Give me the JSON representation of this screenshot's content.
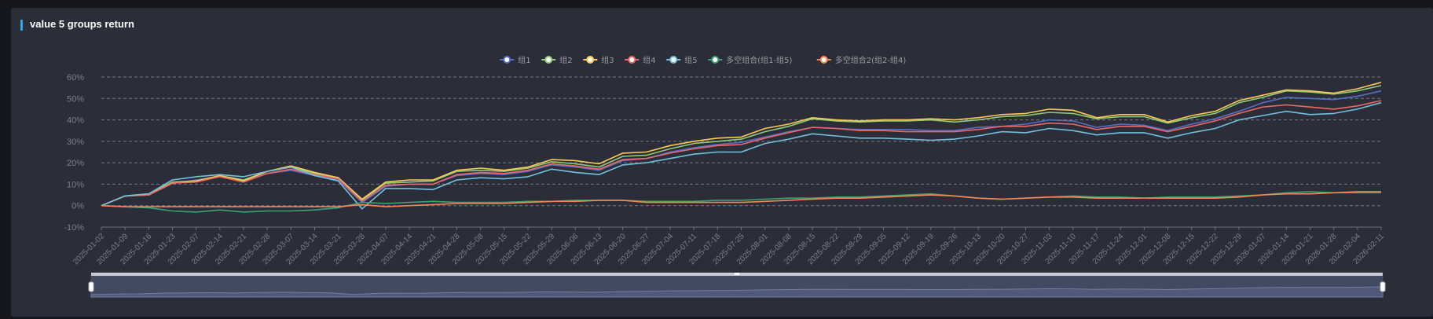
{
  "panel": {
    "title": "value 5 groups return"
  },
  "colors": {
    "background": "#2b2e38",
    "title_accent": "#2fa4e7",
    "grid": "#777a82",
    "axis_text": "#7c7f88"
  },
  "chart_data": {
    "type": "line",
    "title": "value 5 groups return",
    "xlabel": "",
    "ylabel": "",
    "ylim": [
      -10,
      60
    ],
    "y_ticks": [
      -10,
      0,
      10,
      20,
      30,
      40,
      50,
      60
    ],
    "y_tick_format": "percent",
    "grid": "horizontal dashed",
    "legend_position": "top-center",
    "x": [
      "2025-01-02",
      "2025-01-09",
      "2025-01-16",
      "2025-01-23",
      "2025-02-07",
      "2025-02-14",
      "2025-02-21",
      "2025-02-28",
      "2025-03-07",
      "2025-03-14",
      "2025-03-21",
      "2025-03-28",
      "2025-04-07",
      "2025-04-14",
      "2025-04-21",
      "2025-04-28",
      "2025-05-08",
      "2025-05-15",
      "2025-05-22",
      "2025-05-29",
      "2025-06-06",
      "2025-06-13",
      "2025-06-20",
      "2025-06-27",
      "2025-07-04",
      "2025-07-11",
      "2025-07-18",
      "2025-07-25",
      "2025-08-01",
      "2025-08-08",
      "2025-08-15",
      "2025-08-22",
      "2025-08-29",
      "2025-09-05",
      "2025-09-12",
      "2025-09-19",
      "2025-09-26",
      "2025-10-13",
      "2025-10-20",
      "2025-10-27",
      "2025-11-03",
      "2025-11-10",
      "2025-11-17",
      "2025-11-24",
      "2025-12-01",
      "2025-12-08",
      "2025-12-15",
      "2025-12-22",
      "2025-12-29",
      "2026-01-07",
      "2026-01-14",
      "2026-01-21",
      "2026-01-28",
      "2026-02-04",
      "2026-02-11"
    ],
    "series": [
      {
        "name": "组1",
        "color": "#5470c6",
        "values": [
          0,
          4.5,
          5.5,
          10.5,
          12,
          13.5,
          11.5,
          15,
          16.5,
          14,
          12,
          1.5,
          9,
          10,
          10,
          14,
          15,
          14.5,
          16,
          19,
          18,
          16.5,
          21,
          22,
          25,
          27,
          28.5,
          29.5,
          32,
          34.5,
          36.5,
          36,
          35.5,
          35.5,
          35.5,
          35,
          35,
          36.5,
          37,
          38,
          40,
          39.5,
          36.5,
          38,
          37.5,
          35,
          38,
          40.5,
          44,
          48,
          50.5,
          50,
          49.5,
          51,
          53.5
        ]
      },
      {
        "name": "组2",
        "color": "#91cc75",
        "values": [
          0,
          4.5,
          5.5,
          11,
          11.5,
          14,
          12,
          16,
          18,
          15,
          13,
          2.5,
          10.5,
          11,
          11.5,
          16,
          16.5,
          16,
          17.5,
          20.5,
          19.5,
          18,
          23,
          23.5,
          26.5,
          29,
          30,
          31,
          34.5,
          37,
          40.5,
          39.5,
          39,
          39.5,
          39.5,
          40,
          39,
          40,
          41.5,
          42,
          43.5,
          43,
          40.5,
          41.5,
          41.5,
          38.5,
          41,
          43,
          48,
          50.5,
          53.5,
          53,
          52,
          53.5,
          56
        ]
      },
      {
        "name": "组3",
        "color": "#fac858",
        "values": [
          0,
          4.5,
          5,
          10.5,
          11.5,
          14,
          11.5,
          16,
          18.5,
          15.5,
          13,
          3,
          11,
          12,
          12,
          16.5,
          17.5,
          16.5,
          18,
          21.5,
          21,
          19.5,
          24.5,
          25,
          28,
          30,
          31.5,
          32,
          36,
          38,
          41,
          40,
          39.5,
          40,
          40,
          40.5,
          40,
          41,
          42.5,
          43,
          45,
          44.5,
          41,
          42.5,
          42.5,
          39,
          42,
          44,
          49,
          51.5,
          54,
          53.5,
          52.5,
          54.5,
          57.5
        ]
      },
      {
        "name": "组4",
        "color": "#ee6666",
        "values": [
          0,
          4.5,
          5,
          10.5,
          11,
          13.5,
          11,
          15,
          17,
          14.5,
          12.5,
          2,
          9.5,
          10,
          10,
          14.5,
          15.5,
          15,
          16.5,
          19.5,
          18.5,
          17,
          21.5,
          22,
          24.5,
          26.5,
          28,
          28.5,
          31.5,
          34,
          36.5,
          36,
          35,
          35,
          34.5,
          34.5,
          34.5,
          35.5,
          37,
          37,
          38.5,
          38,
          35.5,
          37,
          37,
          34.5,
          37,
          39.5,
          43,
          46,
          47,
          46,
          45,
          46.5,
          49
        ]
      },
      {
        "name": "组5",
        "color": "#73c0de",
        "values": [
          0,
          4.5,
          5.5,
          12,
          13.5,
          14.5,
          13.5,
          16,
          18,
          14,
          11.5,
          -1.5,
          8,
          8,
          7.5,
          12,
          13,
          12.5,
          13.5,
          17,
          15.5,
          14.5,
          19,
          20,
          22,
          24,
          25,
          25,
          29,
          31,
          33.5,
          32.5,
          31.5,
          31.5,
          31,
          30.5,
          31,
          32.5,
          34.5,
          34,
          36,
          35,
          33,
          34,
          34,
          31.5,
          34,
          36,
          40,
          42,
          44,
          42.5,
          43,
          45,
          48
        ]
      },
      {
        "name": "多空组合(组1-组5)",
        "color": "#3ba272",
        "values": [
          0,
          -0.5,
          -1,
          -2.5,
          -3,
          -2,
          -3,
          -2.5,
          -2.5,
          -2,
          -1,
          1.5,
          1,
          1.5,
          2,
          1.5,
          1.5,
          1.5,
          2,
          2,
          2.5,
          2.5,
          2.5,
          2,
          2,
          2,
          2.5,
          2.5,
          3,
          3.5,
          3.5,
          4,
          4,
          4.5,
          5,
          5.5,
          4.5,
          3.5,
          3,
          3.5,
          4,
          4.5,
          4,
          4,
          3.5,
          4,
          4,
          4,
          4.5,
          5,
          6,
          6.5,
          6,
          6,
          6
        ]
      },
      {
        "name": "多空组合2(组2-组4)",
        "color": "#fc8452",
        "values": [
          0,
          -0.5,
          -0.5,
          -0.5,
          -0.5,
          -0.5,
          -0.5,
          -0.5,
          -0.5,
          -0.5,
          -0.5,
          0.5,
          -0.5,
          0,
          0.5,
          1,
          1,
          1,
          1.5,
          2,
          2,
          2.5,
          2.5,
          1.5,
          1.5,
          1.5,
          1.5,
          1.5,
          2,
          2.5,
          3,
          3.5,
          3.5,
          4,
          4.5,
          5,
          4.5,
          3.5,
          3,
          3.5,
          4,
          4,
          3.5,
          3.5,
          3.5,
          3.5,
          3.5,
          3.5,
          4,
          5,
          5.5,
          5.5,
          6,
          6.5,
          6.5
        ]
      }
    ],
    "data_zoom": {
      "start": 0,
      "end": 100
    }
  }
}
